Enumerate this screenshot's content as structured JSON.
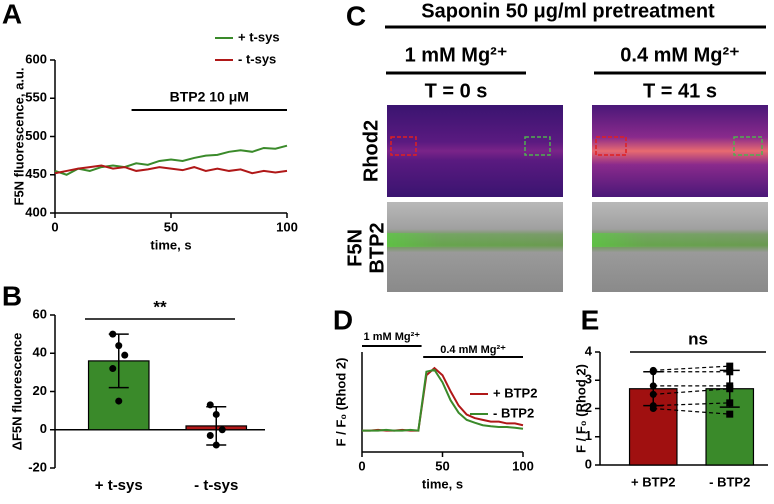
{
  "chart_data": [
    {
      "panel": "A",
      "type": "line",
      "x": [
        0,
        5,
        10,
        15,
        20,
        25,
        30,
        35,
        40,
        45,
        50,
        55,
        60,
        65,
        70,
        75,
        80,
        85,
        90,
        95,
        100
      ],
      "series": [
        {
          "name": "+ t-sys",
          "color": "#3a8a2a",
          "values": [
            455,
            450,
            458,
            455,
            460,
            462,
            460,
            465,
            463,
            468,
            470,
            468,
            472,
            475,
            476,
            480,
            482,
            480,
            485,
            484,
            488
          ]
        },
        {
          "name": "- t-sys",
          "color": "#b01818",
          "values": [
            452,
            455,
            458,
            460,
            462,
            458,
            460,
            455,
            457,
            460,
            458,
            456,
            460,
            455,
            458,
            455,
            457,
            452,
            455,
            453,
            455
          ]
        }
      ],
      "xlim": [
        0,
        100
      ],
      "xticks": [
        0,
        50,
        100
      ],
      "ylim": [
        400,
        600
      ],
      "yticks": [
        400,
        450,
        500,
        550,
        600
      ],
      "x_label": "time, s",
      "y_label": "F5N fluorescence, a.u.",
      "annotations": [
        {
          "text": "BTP2 10 μM",
          "x": [
            33,
            100
          ]
        }
      ]
    },
    {
      "panel": "B",
      "type": "bar",
      "categories": [
        "+ t-sys",
        "- t-sys"
      ],
      "values": [
        36,
        2
      ],
      "errors": [
        14,
        10
      ],
      "points": [
        [
          50,
          44,
          39,
          32,
          15
        ],
        [
          13,
          8,
          0,
          -3,
          -8
        ]
      ],
      "colors": [
        "#3a8a2a",
        "#b01818"
      ],
      "ylim": [
        -20,
        60
      ],
      "yticks": [
        -20,
        0,
        20,
        40,
        60
      ],
      "y_label": "ΔF5N fluorescence",
      "significance": "**"
    },
    {
      "panel": "D",
      "type": "line",
      "x": [
        0,
        5,
        10,
        15,
        20,
        25,
        30,
        35,
        40,
        45,
        50,
        55,
        60,
        65,
        70,
        75,
        80,
        85,
        90,
        95,
        100
      ],
      "series": [
        {
          "name": "+ BTP2",
          "color": "#b01818",
          "values": [
            1.0,
            1.0,
            1.02,
            1.0,
            1.0,
            1.02,
            1.0,
            1.0,
            2.55,
            2.75,
            2.55,
            2.1,
            1.7,
            1.45,
            1.35,
            1.3,
            1.25,
            1.25,
            1.2,
            1.2,
            1.15
          ]
        },
        {
          "name": "- BTP2",
          "color": "#3a8a2a",
          "values": [
            1.0,
            1.0,
            1.0,
            1.02,
            1.0,
            1.0,
            1.02,
            1.0,
            2.65,
            2.7,
            2.35,
            1.85,
            1.5,
            1.3,
            1.22,
            1.15,
            1.12,
            1.1,
            1.1,
            1.08,
            1.05
          ]
        }
      ],
      "xlim": [
        0,
        100
      ],
      "xticks": [
        0,
        50,
        100
      ],
      "ylim": [
        0.4,
        3.2
      ],
      "x_label": "time, s",
      "y_label": "F / F₀ (Rhod 2)",
      "annotations": [
        {
          "text": "1 mM Mg²⁺",
          "x": [
            0,
            37
          ]
        },
        {
          "text": "0.4 mM Mg²⁺",
          "x": [
            38,
            100
          ]
        }
      ]
    },
    {
      "panel": "E",
      "type": "bar",
      "categories": [
        "+ BTP2",
        "- BTP2"
      ],
      "values": [
        2.7,
        2.7
      ],
      "errors": [
        0.6,
        0.65
      ],
      "points": [
        [
          3.35,
          3.3,
          2.8,
          2.5,
          2.1,
          2.0
        ],
        [
          3.5,
          3.3,
          2.8,
          2.7,
          2.2,
          1.8
        ]
      ],
      "paired": true,
      "colors": [
        "#a01010",
        "#3a8a2a"
      ],
      "ylim": [
        0,
        4
      ],
      "yticks": [
        0,
        1,
        2,
        3,
        4
      ],
      "y_label": "F / F₀ (Rhod 2)",
      "significance": "ns"
    }
  ],
  "image_panel": {
    "panel": "C",
    "title": "Saponin 50 μg/ml pretreatment",
    "columns": [
      {
        "condition": "1 mM Mg²⁺",
        "time": "T = 0 s"
      },
      {
        "condition": "0.4 mM Mg²⁺",
        "time": "T = 41 s"
      }
    ],
    "row_labels": [
      [
        "Rhod2"
      ],
      [
        "F5N",
        "BTP2"
      ]
    ]
  }
}
